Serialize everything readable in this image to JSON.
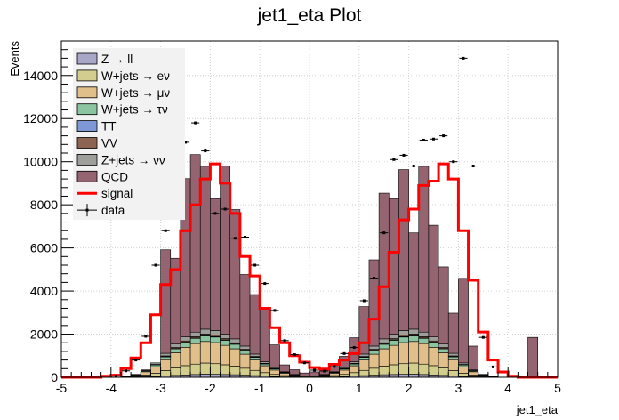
{
  "chart_data": {
    "type": "bar",
    "title": "jet1_eta Plot",
    "xlabel": "jet1_eta",
    "ylabel": "Events",
    "xlim": [
      -5,
      5
    ],
    "ylim": [
      0,
      15600
    ],
    "x_ticks": [
      -5,
      -4,
      -3,
      -2,
      -1,
      0,
      1,
      2,
      3,
      4,
      5
    ],
    "y_ticks": [
      0,
      2000,
      4000,
      6000,
      8000,
      10000,
      12000,
      14000
    ],
    "bin_edges_start": -5,
    "bin_width": 0.2,
    "grid": true,
    "legend_position": "top-left",
    "stack_order_bottom_to_top": [
      "Z → ll",
      "W+jets → eν",
      "W+jets → μν",
      "W+jets → τν",
      "TT",
      "VV",
      "Z+jets → νν",
      "QCD"
    ],
    "series": [
      {
        "name": "Z → ll",
        "color": "#a9a7c7",
        "values": [
          0,
          0,
          0,
          0,
          0,
          0,
          3,
          10,
          25,
          40,
          65,
          90,
          110,
          130,
          150,
          140,
          130,
          120,
          100,
          80,
          55,
          35,
          20,
          10,
          5,
          5,
          10,
          20,
          35,
          55,
          80,
          100,
          120,
          130,
          140,
          150,
          130,
          110,
          90,
          65,
          40,
          25,
          10,
          3,
          0,
          0,
          0,
          0,
          0,
          0
        ]
      },
      {
        "name": "W+jets → eν",
        "color": "#d4ce8e",
        "values": [
          0,
          0,
          0,
          0,
          0,
          0,
          10,
          30,
          80,
          150,
          250,
          350,
          430,
          480,
          510,
          490,
          450,
          400,
          320,
          240,
          160,
          100,
          60,
          30,
          15,
          15,
          30,
          60,
          100,
          160,
          240,
          320,
          400,
          450,
          490,
          510,
          480,
          430,
          350,
          250,
          150,
          80,
          30,
          10,
          0,
          0,
          0,
          0,
          0,
          0
        ]
      },
      {
        "name": "W+jets → μν",
        "color": "#e0bf8a",
        "values": [
          0,
          0,
          0,
          0,
          0,
          0,
          20,
          60,
          150,
          300,
          500,
          700,
          850,
          950,
          1000,
          980,
          900,
          800,
          650,
          480,
          320,
          200,
          110,
          60,
          30,
          30,
          60,
          110,
          200,
          320,
          480,
          650,
          800,
          900,
          980,
          1000,
          950,
          850,
          700,
          500,
          300,
          150,
          60,
          20,
          0,
          0,
          0,
          0,
          0,
          0
        ]
      },
      {
        "name": "W+jets → τν",
        "color": "#8bc4a0",
        "values": [
          0,
          0,
          0,
          0,
          0,
          0,
          5,
          15,
          40,
          80,
          130,
          180,
          220,
          245,
          260,
          255,
          235,
          210,
          170,
          125,
          85,
          55,
          30,
          15,
          8,
          8,
          15,
          30,
          55,
          85,
          125,
          170,
          210,
          235,
          255,
          260,
          245,
          220,
          180,
          130,
          80,
          40,
          15,
          5,
          0,
          0,
          0,
          0,
          0,
          0
        ]
      },
      {
        "name": "TT",
        "color": "#7e98d6",
        "values": [
          0,
          0,
          0,
          0,
          0,
          0,
          1,
          2,
          5,
          8,
          12,
          15,
          18,
          20,
          22,
          21,
          20,
          18,
          15,
          11,
          8,
          5,
          3,
          2,
          1,
          1,
          2,
          3,
          5,
          8,
          11,
          15,
          18,
          20,
          21,
          22,
          20,
          18,
          15,
          12,
          8,
          5,
          2,
          1,
          0,
          0,
          0,
          0,
          0,
          0
        ]
      },
      {
        "name": "VV",
        "color": "#8c6451",
        "values": [
          0,
          0,
          0,
          0,
          0,
          0,
          2,
          5,
          10,
          20,
          35,
          45,
          55,
          60,
          65,
          62,
          58,
          52,
          42,
          30,
          20,
          12,
          7,
          4,
          2,
          2,
          4,
          7,
          12,
          20,
          30,
          42,
          52,
          58,
          62,
          65,
          60,
          55,
          45,
          35,
          20,
          10,
          5,
          2,
          0,
          0,
          0,
          0,
          0,
          0
        ]
      },
      {
        "name": "Z+jets → νν",
        "color": "#9e9e9b",
        "values": [
          0,
          0,
          0,
          0,
          0,
          0,
          5,
          15,
          35,
          70,
          120,
          160,
          190,
          210,
          225,
          220,
          205,
          180,
          150,
          110,
          75,
          45,
          25,
          12,
          6,
          6,
          12,
          25,
          45,
          75,
          110,
          150,
          180,
          205,
          220,
          225,
          210,
          190,
          160,
          120,
          70,
          35,
          15,
          5,
          0,
          0,
          0,
          0,
          0,
          0
        ]
      },
      {
        "name": "QCD",
        "color": "#946571",
        "values": [
          0,
          0,
          0,
          0,
          0,
          0,
          0,
          0,
          0,
          0,
          4800,
          3980,
          7340,
          8235,
          7555,
          6120,
          7800,
          6000,
          3320,
          2760,
          2490,
          1050,
          320,
          217,
          133,
          183,
          207,
          245,
          520,
          1110,
          2200,
          4000,
          6760,
          6290,
          7465,
          4465,
          7690,
          5180,
          3580,
          1860,
          3920,
          1100,
          0,
          0,
          0,
          0,
          0,
          1850,
          0,
          0
        ]
      }
    ],
    "signal": {
      "name": "signal",
      "color": "#ff0000",
      "values": [
        0,
        0,
        0,
        0,
        50,
        100,
        400,
        900,
        1600,
        2900,
        4300,
        5000,
        6800,
        8000,
        9200,
        9900,
        9000,
        7600,
        5600,
        4700,
        3200,
        2300,
        1600,
        1000,
        700,
        450,
        380,
        600,
        800,
        1100,
        1600,
        2700,
        4200,
        5800,
        7300,
        7800,
        8900,
        9100,
        9900,
        9200,
        6800,
        4500,
        2100,
        800,
        250,
        50,
        0,
        0,
        0,
        0
      ]
    },
    "data": {
      "name": "data",
      "values": [
        0,
        0,
        0,
        0,
        0,
        60,
        300,
        800,
        1900,
        5200,
        6800,
        7800,
        10900,
        11800,
        10500,
        7600,
        7800,
        6450,
        6500,
        5200,
        4350,
        3100,
        1700,
        1050,
        670,
        330,
        290,
        500,
        1100,
        1380,
        3550,
        4600,
        6700,
        10100,
        10300,
        9800,
        11000,
        11050,
        11200,
        10000,
        14800,
        9800,
        1850,
        480,
        0,
        0,
        0,
        0,
        0,
        0
      ]
    },
    "legend": [
      {
        "label": "Z → ll",
        "kind": "box",
        "color": "#a9a7c7"
      },
      {
        "label": "W+jets → eν",
        "kind": "box",
        "color": "#d4ce8e"
      },
      {
        "label": "W+jets → μν",
        "kind": "box",
        "color": "#e0bf8a"
      },
      {
        "label": "W+jets → τν",
        "kind": "box",
        "color": "#8bc4a0"
      },
      {
        "label": "TT",
        "kind": "box",
        "color": "#7e98d6"
      },
      {
        "label": "VV",
        "kind": "box",
        "color": "#8c6451"
      },
      {
        "label": "Z+jets → νν",
        "kind": "box",
        "color": "#9e9e9b"
      },
      {
        "label": "QCD",
        "kind": "box",
        "color": "#946571"
      },
      {
        "label": "signal",
        "kind": "line",
        "color": "#ff0000"
      },
      {
        "label": "data",
        "kind": "marker",
        "color": "#000000"
      }
    ]
  }
}
